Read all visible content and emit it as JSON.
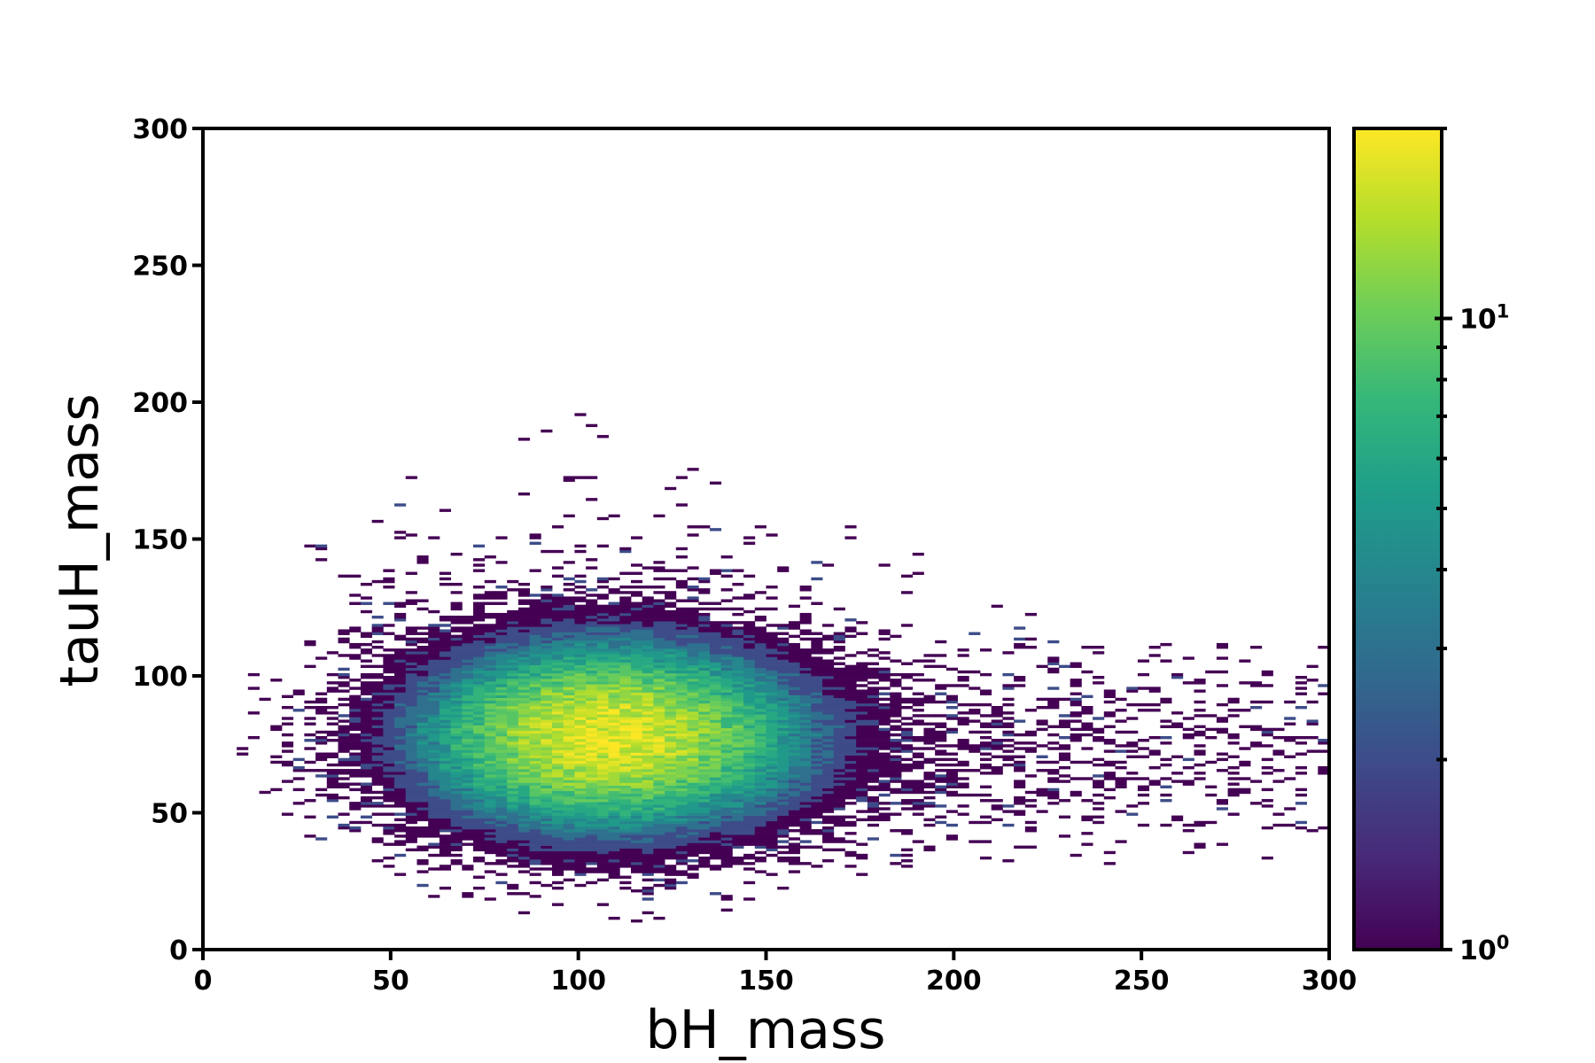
{
  "chart_data": {
    "type": "heatmap",
    "title": "",
    "xlabel": "bH_mass",
    "ylabel": "tauH_mass",
    "xlim": [
      0,
      300
    ],
    "ylim": [
      0,
      300
    ],
    "xticks": [
      0,
      50,
      100,
      150,
      200,
      250,
      300
    ],
    "yticks": [
      0,
      50,
      100,
      150,
      200,
      250,
      300
    ],
    "xtick_labels": [
      "0",
      "50",
      "100",
      "150",
      "200",
      "250",
      "300"
    ],
    "ytick_labels": [
      "0",
      "50",
      "100",
      "150",
      "200",
      "250",
      "300"
    ],
    "bin_width": 3,
    "bin_height": 1,
    "colormap": "viridis",
    "color_scale": "log",
    "colorbar": {
      "min": 1,
      "max": 20,
      "ticks": [
        {
          "value": 1,
          "base": "10",
          "exponent": "0"
        },
        {
          "value": 10,
          "base": "10",
          "exponent": "1"
        }
      ],
      "minor_ticks": [
        2,
        3,
        4,
        5,
        6,
        7,
        8,
        9,
        20
      ]
    },
    "distribution": {
      "core_center": [
        108,
        78
      ],
      "core_sigma": [
        28,
        19
      ],
      "peak_count": 18,
      "high_mass_tail": "x 150-300, y 30-110",
      "sparse_halo": "x 20-260, y 120-300"
    },
    "colors": {
      "viridis": [
        "#440154",
        "#482878",
        "#3e4989",
        "#31688e",
        "#26828e",
        "#1f9e89",
        "#35b779",
        "#6ece58",
        "#b5de2b",
        "#fde725"
      ]
    }
  }
}
